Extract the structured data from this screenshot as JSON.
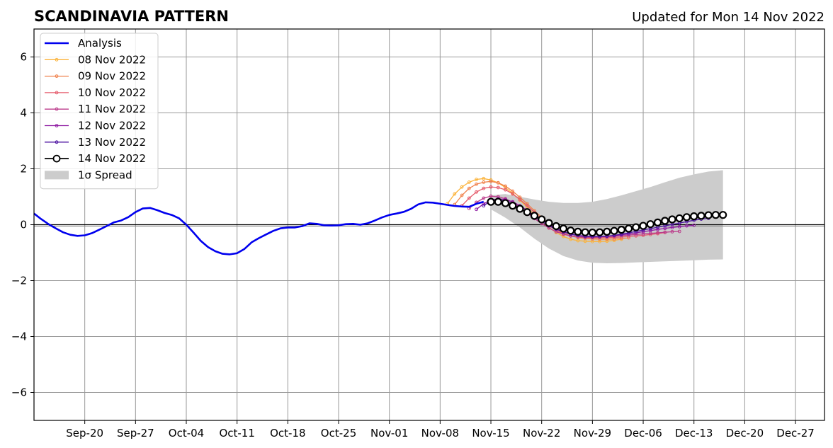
{
  "chart_data": {
    "type": "line",
    "title": "SCANDINAVIA PATTERN",
    "subtitle": "Updated for Mon 14 Nov 2022",
    "xlabel": "",
    "ylabel": "",
    "x_axis_type": "date",
    "xlim": [
      "2022-09-13",
      "2022-12-31"
    ],
    "ylim": [
      -7,
      7
    ],
    "xticks": [
      {
        "date": "2022-09-20",
        "label": "Sep-20"
      },
      {
        "date": "2022-09-27",
        "label": "Sep-27"
      },
      {
        "date": "2022-10-04",
        "label": "Oct-04"
      },
      {
        "date": "2022-10-11",
        "label": "Oct-11"
      },
      {
        "date": "2022-10-18",
        "label": "Oct-18"
      },
      {
        "date": "2022-10-25",
        "label": "Oct-25"
      },
      {
        "date": "2022-11-01",
        "label": "Nov-01"
      },
      {
        "date": "2022-11-08",
        "label": "Nov-08"
      },
      {
        "date": "2022-11-15",
        "label": "Nov-15"
      },
      {
        "date": "2022-11-22",
        "label": "Nov-22"
      },
      {
        "date": "2022-11-29",
        "label": "Nov-29"
      },
      {
        "date": "2022-12-06",
        "label": "Dec-06"
      },
      {
        "date": "2022-12-13",
        "label": "Dec-13"
      },
      {
        "date": "2022-12-20",
        "label": "Dec-20"
      },
      {
        "date": "2022-12-27",
        "label": "Dec-27"
      }
    ],
    "yticks": [
      {
        "value": 6,
        "label": "6"
      },
      {
        "value": 4,
        "label": "4"
      },
      {
        "value": 2,
        "label": "2"
      },
      {
        "value": 0,
        "label": "0"
      },
      {
        "value": -2,
        "label": "−2"
      },
      {
        "value": -4,
        "label": "−4"
      },
      {
        "value": -6,
        "label": "−6"
      }
    ],
    "grid": true,
    "zero_line": true,
    "legend_position": "top-left",
    "analysis": {
      "name": "Analysis",
      "color": "#0000ee",
      "points": [
        [
          "2022-09-13",
          0.4
        ],
        [
          "2022-09-14",
          0.2
        ],
        [
          "2022-09-15",
          0.02
        ],
        [
          "2022-09-16",
          -0.13
        ],
        [
          "2022-09-17",
          -0.27
        ],
        [
          "2022-09-18",
          -0.36
        ],
        [
          "2022-09-19",
          -0.4
        ],
        [
          "2022-09-20",
          -0.38
        ],
        [
          "2022-09-21",
          -0.3
        ],
        [
          "2022-09-22",
          -0.18
        ],
        [
          "2022-09-23",
          -0.05
        ],
        [
          "2022-09-24",
          0.08
        ],
        [
          "2022-09-25",
          0.15
        ],
        [
          "2022-09-26",
          0.27
        ],
        [
          "2022-09-27",
          0.45
        ],
        [
          "2022-09-28",
          0.58
        ],
        [
          "2022-09-29",
          0.6
        ],
        [
          "2022-09-30",
          0.52
        ],
        [
          "2022-10-01",
          0.42
        ],
        [
          "2022-10-02",
          0.35
        ],
        [
          "2022-10-03",
          0.23
        ],
        [
          "2022-10-04",
          0.0
        ],
        [
          "2022-10-05",
          -0.28
        ],
        [
          "2022-10-06",
          -0.58
        ],
        [
          "2022-10-07",
          -0.8
        ],
        [
          "2022-10-08",
          -0.95
        ],
        [
          "2022-10-09",
          -1.04
        ],
        [
          "2022-10-10",
          -1.06
        ],
        [
          "2022-10-11",
          -1.02
        ],
        [
          "2022-10-12",
          -0.87
        ],
        [
          "2022-10-13",
          -0.63
        ],
        [
          "2022-10-14",
          -0.48
        ],
        [
          "2022-10-15",
          -0.35
        ],
        [
          "2022-10-16",
          -0.22
        ],
        [
          "2022-10-17",
          -0.13
        ],
        [
          "2022-10-18",
          -0.1
        ],
        [
          "2022-10-19",
          -0.1
        ],
        [
          "2022-10-20",
          -0.05
        ],
        [
          "2022-10-21",
          0.05
        ],
        [
          "2022-10-22",
          0.03
        ],
        [
          "2022-10-23",
          -0.02
        ],
        [
          "2022-10-24",
          -0.03
        ],
        [
          "2022-10-25",
          -0.02
        ],
        [
          "2022-10-26",
          0.02
        ],
        [
          "2022-10-27",
          0.03
        ],
        [
          "2022-10-28",
          0.0
        ],
        [
          "2022-10-29",
          0.05
        ],
        [
          "2022-10-30",
          0.15
        ],
        [
          "2022-10-31",
          0.26
        ],
        [
          "2022-11-01",
          0.35
        ],
        [
          "2022-11-02",
          0.4
        ],
        [
          "2022-11-03",
          0.46
        ],
        [
          "2022-11-04",
          0.57
        ],
        [
          "2022-11-05",
          0.73
        ],
        [
          "2022-11-06",
          0.8
        ],
        [
          "2022-11-07",
          0.79
        ],
        [
          "2022-11-08",
          0.75
        ],
        [
          "2022-11-09",
          0.71
        ],
        [
          "2022-11-10",
          0.67
        ],
        [
          "2022-11-11",
          0.65
        ],
        [
          "2022-11-12",
          0.64
        ],
        [
          "2022-11-13",
          0.75
        ],
        [
          "2022-11-14",
          0.82
        ]
      ]
    },
    "spread": {
      "name": "1σ Spread",
      "color": "#cccccc",
      "points": [
        [
          "2022-11-15",
          1.05,
          0.55
        ],
        [
          "2022-11-17",
          1.1,
          0.25
        ],
        [
          "2022-11-19",
          1.0,
          -0.1
        ],
        [
          "2022-11-21",
          0.9,
          -0.5
        ],
        [
          "2022-11-23",
          0.82,
          -0.85
        ],
        [
          "2022-11-25",
          0.78,
          -1.12
        ],
        [
          "2022-11-27",
          0.78,
          -1.28
        ],
        [
          "2022-11-29",
          0.82,
          -1.36
        ],
        [
          "2022-12-01",
          0.92,
          -1.38
        ],
        [
          "2022-12-03",
          1.05,
          -1.37
        ],
        [
          "2022-12-05",
          1.2,
          -1.35
        ],
        [
          "2022-12-07",
          1.35,
          -1.33
        ],
        [
          "2022-12-09",
          1.52,
          -1.31
        ],
        [
          "2022-12-11",
          1.68,
          -1.29
        ],
        [
          "2022-12-13",
          1.8,
          -1.27
        ],
        [
          "2022-12-15",
          1.9,
          -1.25
        ],
        [
          "2022-12-17",
          1.95,
          -1.24
        ]
      ]
    },
    "series": [
      {
        "name": "08 Nov 2022",
        "color": "#fbb33a",
        "start": "2022-11-09",
        "values": [
          0.75,
          1.1,
          1.35,
          1.52,
          1.62,
          1.65,
          1.6,
          1.5,
          1.33,
          1.12,
          0.88,
          0.62,
          0.36,
          0.12,
          -0.1,
          -0.28,
          -0.42,
          -0.52,
          -0.57,
          -0.59,
          -0.6,
          -0.6,
          -0.59,
          -0.56,
          -0.52
        ]
      },
      {
        "name": "09 Nov 2022",
        "color": "#f0804a",
        "start": "2022-11-10",
        "values": [
          0.72,
          1.05,
          1.3,
          1.45,
          1.52,
          1.55,
          1.5,
          1.38,
          1.2,
          0.98,
          0.75,
          0.5,
          0.26,
          0.04,
          -0.15,
          -0.3,
          -0.4,
          -0.46,
          -0.49,
          -0.51,
          -0.52,
          -0.52,
          -0.51,
          -0.49,
          -0.47
        ]
      },
      {
        "name": "10 Nov 2022",
        "color": "#e55a6b",
        "start": "2022-11-11",
        "values": [
          0.68,
          0.95,
          1.17,
          1.3,
          1.35,
          1.33,
          1.25,
          1.1,
          0.9,
          0.68,
          0.44,
          0.2,
          -0.02,
          -0.2,
          -0.33,
          -0.4,
          -0.44,
          -0.46,
          -0.47,
          -0.47,
          -0.46,
          -0.45,
          -0.44,
          -0.42,
          -0.4,
          -0.38,
          -0.35,
          -0.32,
          -0.28
        ]
      },
      {
        "name": "11 Nov 2022",
        "color": "#bb3b8b",
        "start": "2022-11-12",
        "values": [
          0.58,
          0.8,
          0.95,
          1.02,
          1.0,
          0.93,
          0.8,
          0.62,
          0.42,
          0.22,
          0.04,
          -0.12,
          -0.25,
          -0.34,
          -0.4,
          -0.43,
          -0.45,
          -0.45,
          -0.44,
          -0.43,
          -0.41,
          -0.39,
          -0.37,
          -0.35,
          -0.33,
          -0.31,
          -0.29,
          -0.27,
          -0.25,
          -0.24
        ]
      },
      {
        "name": "12 Nov 2022",
        "color": "#8f1ba2",
        "start": "2022-11-13",
        "values": [
          0.55,
          0.75,
          0.88,
          0.93,
          0.9,
          0.82,
          0.68,
          0.52,
          0.34,
          0.16,
          0.0,
          -0.14,
          -0.25,
          -0.33,
          -0.38,
          -0.41,
          -0.42,
          -0.42,
          -0.41,
          -0.39,
          -0.36,
          -0.33,
          -0.29,
          -0.25,
          -0.21,
          -0.17,
          -0.13,
          -0.1,
          -0.07,
          -0.04,
          -0.02
        ]
      },
      {
        "name": "13 Nov 2022",
        "color": "#4c12a0",
        "start": "2022-11-14",
        "values": [
          0.68,
          0.85,
          0.9,
          0.85,
          0.75,
          0.6,
          0.44,
          0.27,
          0.11,
          -0.04,
          -0.16,
          -0.26,
          -0.34,
          -0.39,
          -0.42,
          -0.43,
          -0.43,
          -0.41,
          -0.38,
          -0.34,
          -0.29,
          -0.24,
          -0.19,
          -0.14,
          -0.09,
          -0.04,
          0.01,
          0.06,
          0.11,
          0.16,
          0.2,
          0.23
        ]
      },
      {
        "name": "14 Nov 2022",
        "color": "#000000",
        "start": "2022-11-15",
        "open_markers": true,
        "values": [
          0.82,
          0.82,
          0.77,
          0.68,
          0.57,
          0.45,
          0.32,
          0.19,
          0.06,
          -0.05,
          -0.14,
          -0.21,
          -0.25,
          -0.27,
          -0.28,
          -0.27,
          -0.25,
          -0.22,
          -0.18,
          -0.14,
          -0.09,
          -0.04,
          0.02,
          0.08,
          0.14,
          0.19,
          0.23,
          0.27,
          0.3,
          0.32,
          0.34,
          0.35,
          0.35
        ]
      }
    ]
  }
}
